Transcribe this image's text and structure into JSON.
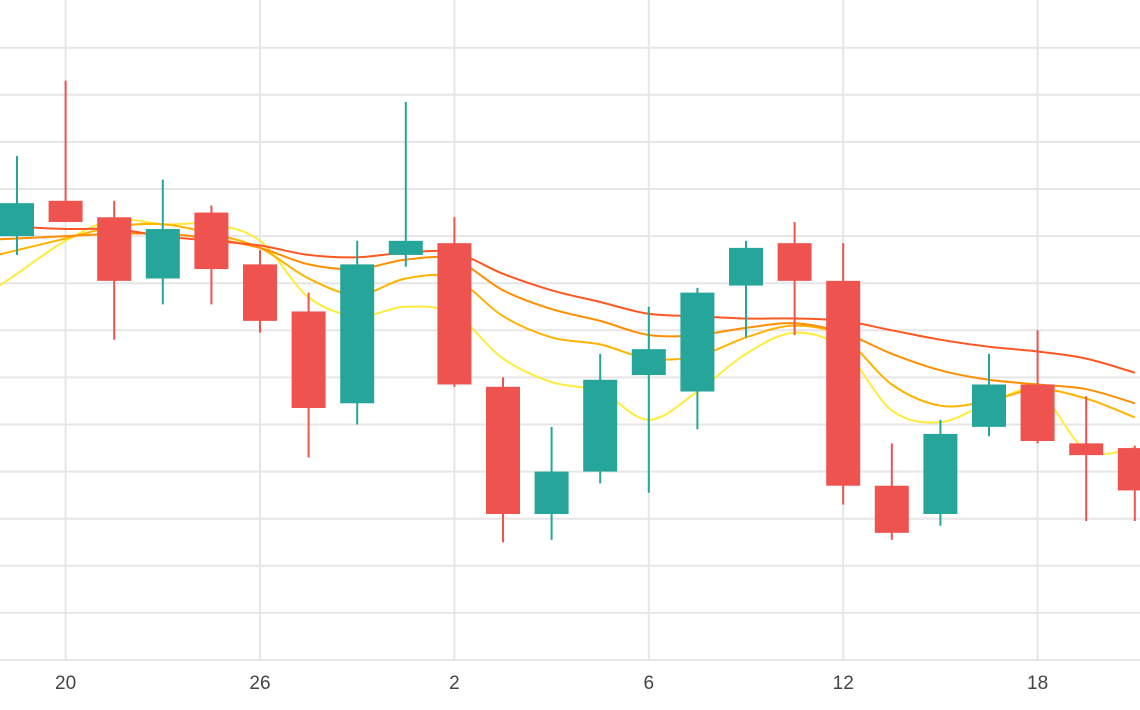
{
  "chart_data": {
    "type": "candlestick",
    "title": "",
    "xlabel": "",
    "ylabel": "",
    "grid": true,
    "x_ticks": [
      {
        "label": "20",
        "index": 1
      },
      {
        "label": "26",
        "index": 5
      },
      {
        "label": "2",
        "index": 9
      },
      {
        "label": "6",
        "index": 13
      },
      {
        "label": "12",
        "index": 17
      },
      {
        "label": "18",
        "index": 21
      }
    ],
    "ylim": [
      0,
      14
    ],
    "horizontal_gridlines": [
      1,
      2,
      3,
      4,
      5,
      6,
      7,
      8,
      9,
      10,
      11,
      12,
      13
    ],
    "colors": {
      "up": "#26a69a",
      "down": "#ef5350",
      "grid": "#e6e6e6",
      "ma_fast": "#ffeb3b",
      "ma_2": "#ffb300",
      "ma_3": "#ff8f00",
      "ma_slow": "#ff5722"
    },
    "candles": [
      {
        "open": 9.0,
        "high": 10.7,
        "low": 8.6,
        "close": 9.7
      },
      {
        "open": 9.75,
        "high": 12.3,
        "low": 9.3,
        "close": 9.3
      },
      {
        "open": 9.4,
        "high": 9.75,
        "low": 6.8,
        "close": 8.05
      },
      {
        "open": 8.1,
        "high": 10.2,
        "low": 7.55,
        "close": 9.15
      },
      {
        "open": 9.5,
        "high": 9.65,
        "low": 7.55,
        "close": 8.3
      },
      {
        "open": 8.4,
        "high": 8.7,
        "low": 6.95,
        "close": 7.2
      },
      {
        "open": 7.4,
        "high": 7.8,
        "low": 4.3,
        "close": 5.35
      },
      {
        "open": 5.45,
        "high": 8.9,
        "low": 5.0,
        "close": 8.4
      },
      {
        "open": 8.6,
        "high": 11.85,
        "low": 8.35,
        "close": 8.9
      },
      {
        "open": 8.85,
        "high": 9.4,
        "low": 5.8,
        "close": 5.85
      },
      {
        "open": 5.8,
        "high": 6.0,
        "low": 2.5,
        "close": 3.1
      },
      {
        "open": 3.1,
        "high": 4.95,
        "low": 2.55,
        "close": 4.0
      },
      {
        "open": 4.0,
        "high": 6.5,
        "low": 3.75,
        "close": 5.95
      },
      {
        "open": 6.05,
        "high": 7.5,
        "low": 3.55,
        "close": 6.6
      },
      {
        "open": 5.7,
        "high": 7.9,
        "low": 4.9,
        "close": 7.8
      },
      {
        "open": 7.95,
        "high": 8.9,
        "low": 6.85,
        "close": 8.75
      },
      {
        "open": 8.85,
        "high": 9.3,
        "low": 6.9,
        "close": 8.05
      },
      {
        "open": 8.05,
        "high": 8.85,
        "low": 3.3,
        "close": 3.7
      },
      {
        "open": 3.7,
        "high": 4.6,
        "low": 2.55,
        "close": 2.7
      },
      {
        "open": 3.1,
        "high": 5.1,
        "low": 2.85,
        "close": 4.8
      },
      {
        "open": 4.95,
        "high": 6.5,
        "low": 4.75,
        "close": 5.85
      },
      {
        "open": 5.85,
        "high": 7.0,
        "low": 4.6,
        "close": 4.65
      },
      {
        "open": 4.6,
        "high": 5.6,
        "low": 2.95,
        "close": 4.35
      },
      {
        "open": 4.5,
        "high": 4.55,
        "low": 2.95,
        "close": 3.6
      }
    ],
    "moving_averages": [
      {
        "color_key": "ma_fast",
        "values": [
          8.2,
          8.9,
          9.35,
          9.25,
          9.25,
          8.9,
          7.7,
          7.3,
          7.5,
          7.35,
          6.4,
          5.9,
          5.7,
          5.1,
          5.7,
          6.5,
          6.95,
          6.6,
          5.3,
          5.05,
          5.45,
          5.7,
          4.45,
          4.5
        ]
      },
      {
        "color_key": "ma_2",
        "values": [
          8.7,
          8.95,
          9.2,
          9.25,
          9.05,
          8.75,
          8.1,
          7.75,
          8.1,
          8.1,
          7.3,
          6.85,
          6.7,
          6.4,
          6.45,
          6.85,
          7.1,
          6.85,
          5.85,
          5.4,
          5.5,
          5.75,
          5.55,
          5.15
        ]
      },
      {
        "color_key": "ma_3",
        "values": [
          8.95,
          9.0,
          9.05,
          9.05,
          8.95,
          8.75,
          8.4,
          8.3,
          8.5,
          8.5,
          7.85,
          7.45,
          7.2,
          6.9,
          6.9,
          7.05,
          7.15,
          6.95,
          6.5,
          6.15,
          5.95,
          5.85,
          5.75,
          5.45
        ]
      },
      {
        "color_key": "ma_slow",
        "values": [
          9.2,
          9.15,
          9.15,
          9.0,
          8.9,
          8.8,
          8.6,
          8.55,
          8.65,
          8.65,
          8.2,
          7.85,
          7.6,
          7.35,
          7.3,
          7.25,
          7.25,
          7.2,
          7.0,
          6.8,
          6.65,
          6.55,
          6.4,
          6.1
        ]
      }
    ]
  }
}
